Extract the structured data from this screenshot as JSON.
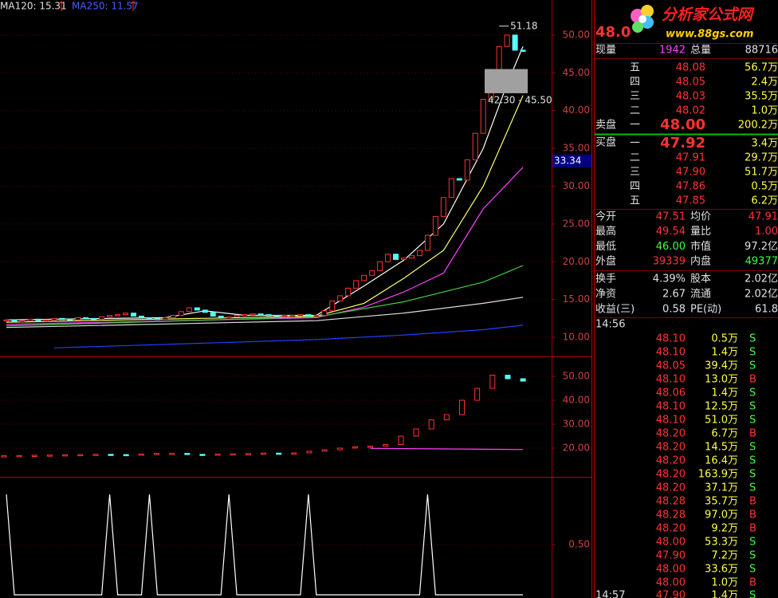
{
  "chart_data": [
    {
      "type": "candlestick",
      "header_labels": [
        "MA120: 15.31",
        "MA250: 11.57"
      ],
      "ylim": [
        7.68,
        54.64
      ],
      "yticks": [
        {
          "value": 10,
          "label": "10.00"
        },
        {
          "value": 15,
          "label": "15.00"
        },
        {
          "value": 20,
          "label": "20.00"
        },
        {
          "value": 25,
          "label": "25.00"
        },
        {
          "value": 30,
          "label": "30.00"
        },
        {
          "value": 35,
          "label": "35.00"
        },
        {
          "value": 40,
          "label": "40.00"
        },
        {
          "value": 45,
          "label": "45.00"
        },
        {
          "value": 50,
          "label": "50.00"
        }
      ],
      "up_color": "#ff3232",
      "down_color": "#54ffff",
      "open": [
        12.2,
        12.3,
        12.1,
        12.2,
        12.4,
        12.2,
        12.3,
        12.5,
        12.4,
        12.3,
        12.6,
        12.5,
        12.4,
        12.7,
        12.9,
        13.0,
        13.2,
        12.8,
        12.6,
        12.5,
        12.4,
        12.6,
        12.9,
        13.4,
        13.9,
        13.6,
        13.3,
        12.8,
        12.6,
        12.7,
        12.9,
        13.0,
        13.1,
        13.0,
        12.9,
        12.8,
        12.9,
        12.9,
        13.0,
        12.8,
        12.9,
        13.5,
        14.8,
        15.5,
        16.5,
        17.5,
        18.2,
        18.8,
        20.0,
        21.0,
        20.3,
        20.5,
        20.8,
        21.5,
        23.5,
        26.0,
        28.5,
        31.0,
        30.8,
        33.5,
        37.0,
        41.5,
        45.0,
        48.5,
        50.0,
        48.0
      ],
      "close": [
        12.3,
        12.1,
        12.2,
        12.4,
        12.2,
        12.3,
        12.5,
        12.4,
        12.3,
        12.6,
        12.5,
        12.4,
        12.7,
        12.9,
        13.0,
        13.2,
        12.8,
        12.6,
        12.5,
        12.4,
        12.6,
        12.9,
        13.4,
        13.9,
        13.6,
        13.3,
        12.8,
        12.6,
        12.7,
        12.9,
        13.0,
        13.1,
        13.0,
        12.9,
        12.8,
        12.9,
        12.9,
        13.0,
        12.8,
        12.9,
        13.5,
        14.8,
        15.5,
        16.5,
        17.5,
        18.2,
        18.8,
        20.0,
        21.0,
        20.3,
        20.5,
        20.8,
        21.5,
        23.5,
        26.0,
        28.5,
        31.0,
        30.8,
        33.5,
        37.0,
        41.5,
        45.0,
        48.5,
        50.0,
        48.0,
        47.9
      ],
      "series": [
        {
          "color": "#ffffff",
          "x": [
            0,
            20,
            25,
            30,
            39,
            45,
            50,
            55,
            60,
            63,
            65
          ],
          "values": [
            12.3,
            12.6,
            13.5,
            12.9,
            12.9,
            16.8,
            20.2,
            25.0,
            35.0,
            43.5,
            48.5
          ]
        },
        {
          "color": "#ffff66",
          "x": [
            0,
            39,
            45,
            50,
            55,
            60,
            65
          ],
          "values": [
            12.0,
            12.8,
            14.5,
            17.8,
            21.5,
            30.0,
            42.0
          ]
        },
        {
          "color": "#ff40ff",
          "x": [
            0,
            39,
            45,
            50,
            55,
            60,
            65
          ],
          "values": [
            11.7,
            12.6,
            14.0,
            16.0,
            18.5,
            27.0,
            32.5
          ]
        },
        {
          "color": "#40d040",
          "x": [
            0,
            39,
            50,
            60,
            65
          ],
          "values": [
            11.5,
            12.7,
            14.7,
            17.3,
            19.5
          ]
        },
        {
          "color": "#e0e0e0",
          "x": [
            0,
            39,
            50,
            60,
            65
          ],
          "values": [
            11.3,
            12.2,
            13.2,
            14.5,
            15.3
          ]
        },
        {
          "color": "#2040ff",
          "x": [
            6,
            39,
            50,
            60,
            65
          ],
          "values": [
            8.6,
            9.7,
            10.3,
            11.0,
            11.6
          ]
        }
      ],
      "high_label": {
        "x": 62,
        "value": 51.18,
        "label": "51.18"
      },
      "range_box": {
        "low": 42.3,
        "high": 45.5,
        "label": "42.30 - 45.50"
      },
      "price_marker": {
        "value": 33.34,
        "label": "33.34"
      }
    },
    {
      "type": "candlestick",
      "ylim": [
        8,
        57.33
      ],
      "yticks": [
        {
          "value": 20,
          "label": "20.00"
        },
        {
          "value": 30,
          "label": "30.00"
        },
        {
          "value": 40,
          "label": "40.00"
        },
        {
          "value": 50,
          "label": "50.00"
        }
      ],
      "up_color": "#ff3232",
      "down_color": "#54ffff",
      "open": [
        16.7,
        16.8,
        16.9,
        17.0,
        17.1,
        17.2,
        17.3,
        17.4,
        17.3,
        17.2,
        17.5,
        17.8,
        17.8,
        17.4,
        17.3,
        17.5,
        17.6,
        17.7,
        17.9,
        17.8,
        18.0,
        18.7,
        19.3,
        20.0,
        20.5,
        20.8,
        21.5,
        25.0,
        28.0,
        31.8,
        34.0,
        40.0,
        45.0,
        50.5,
        49.0
      ],
      "close": [
        16.8,
        16.9,
        17.0,
        17.1,
        17.2,
        17.3,
        17.4,
        17.3,
        17.2,
        17.5,
        17.8,
        17.8,
        17.4,
        17.3,
        17.5,
        17.6,
        17.7,
        17.9,
        17.8,
        18.0,
        18.7,
        19.3,
        20.0,
        20.5,
        20.8,
        21.5,
        25.0,
        28.0,
        31.8,
        34.0,
        40.0,
        45.0,
        50.5,
        49.0,
        48.0
      ],
      "series": [
        {
          "color": "#ff40ff",
          "x": [
            24,
            34
          ],
          "values": [
            19.9,
            19.4
          ]
        }
      ]
    },
    {
      "type": "line",
      "ylim": [
        -0.016,
        1.159
      ],
      "yticks": [
        {
          "value": 0.5,
          "label": "0.50"
        }
      ],
      "color": "#ffffff",
      "x": [
        0,
        1,
        12,
        13,
        14,
        17,
        18,
        19,
        27,
        28,
        29,
        37,
        38,
        39,
        52,
        53,
        54,
        65
      ],
      "values": [
        1,
        0,
        0,
        1,
        0,
        0,
        1,
        0,
        0,
        1,
        0,
        0,
        1,
        0,
        0,
        1,
        0,
        0
      ]
    }
  ],
  "quote": {
    "price": "48.0",
    "logo_title": "分析家公式网",
    "logo_url": "www.88gs.com",
    "volume_row": [
      "现量",
      "1942",
      "总量",
      "88716"
    ],
    "sell_label": "卖盘",
    "buy_label": "买盘",
    "asks": [
      [
        "五",
        "48.08",
        "56.7万"
      ],
      [
        "四",
        "48.05",
        "2.4万"
      ],
      [
        "三",
        "48.03",
        "35.5万"
      ],
      [
        "二",
        "48.02",
        "1.0万"
      ],
      [
        "一",
        "48.00",
        "200.2万"
      ]
    ],
    "bids": [
      [
        "一",
        "47.92",
        "3.4万"
      ],
      [
        "二",
        "47.91",
        "29.7万"
      ],
      [
        "三",
        "47.90",
        "51.7万"
      ],
      [
        "四",
        "47.86",
        "0.5万"
      ],
      [
        "五",
        "47.85",
        "6.2万"
      ]
    ],
    "stats": [
      [
        "今开",
        "47.51",
        "均价",
        "47.91"
      ],
      [
        "最高",
        "49.54",
        "量比",
        "1.00"
      ],
      [
        "最低",
        "46.00",
        "市值",
        "97.2亿"
      ],
      [
        "外盘",
        "39339",
        "内盘",
        "49377"
      ]
    ],
    "finance": [
      [
        "换手",
        "4.39%",
        "股本",
        "2.02亿"
      ],
      [
        "净资",
        "2.67",
        "流通",
        "2.02亿"
      ],
      [
        "收益(三)",
        "0.58",
        "PE(动)",
        "61.8"
      ]
    ],
    "ticks_time": "14:56",
    "ticks": [
      [
        "48.10",
        "0.5万",
        "S"
      ],
      [
        "48.10",
        "1.4万",
        "S"
      ],
      [
        "48.05",
        "39.4万",
        "S"
      ],
      [
        "48.10",
        "13.0万",
        "B"
      ],
      [
        "48.06",
        "1.4万",
        "S"
      ],
      [
        "48.10",
        "12.5万",
        "S"
      ],
      [
        "48.10",
        "51.0万",
        "S"
      ],
      [
        "48.20",
        "6.7万",
        "B"
      ],
      [
        "48.20",
        "14.5万",
        "S"
      ],
      [
        "48.20",
        "16.4万",
        "S"
      ],
      [
        "48.20",
        "163.9万",
        "S"
      ],
      [
        "48.20",
        "37.1万",
        "S"
      ],
      [
        "48.28",
        "35.7万",
        "B"
      ],
      [
        "48.28",
        "97.0万",
        "B"
      ],
      [
        "48.20",
        "9.2万",
        "B"
      ],
      [
        "48.00",
        "53.3万",
        "S"
      ],
      [
        "47.90",
        "7.2万",
        "S"
      ],
      [
        "48.00",
        "33.6万",
        "S"
      ],
      [
        "48.00",
        "1.0万",
        "B"
      ]
    ],
    "next_time": "14:57",
    "next_tick": [
      "47.90",
      "1.4万",
      "S"
    ]
  }
}
